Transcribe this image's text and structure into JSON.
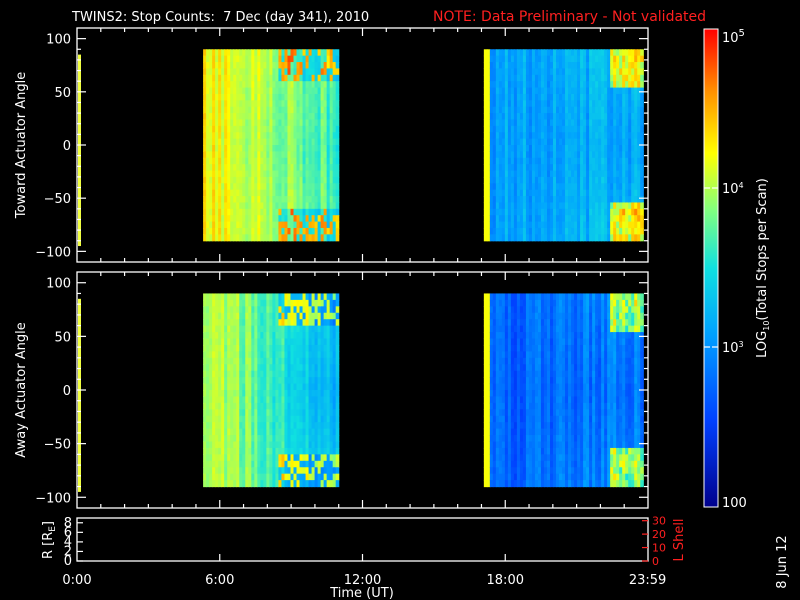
{
  "chart_data": {
    "type": "heatmap",
    "title": {
      "main": "TWINS2: Stop Counts:  7 Dec (day 341), 2010",
      "note": "NOTE: Data Preliminary - Not validated"
    },
    "xlabel": "Time (UT)",
    "x_ticks": [
      "0:00",
      "6:00",
      "12:00",
      "18:00",
      "23:59"
    ],
    "xlim": [
      0,
      24
    ],
    "panels": [
      {
        "ylabel": "Toward Actuator Angle",
        "ylim": [
          -110,
          110
        ],
        "y_ticks": [
          "100",
          "50",
          "0",
          "−50",
          "−100"
        ],
        "angle_range": [
          -90,
          90
        ],
        "data_intervals": [
          {
            "start": 5.3,
            "end": 11.0,
            "log_counts": {
              "early": 4.25,
              "late": 3.75
            }
          },
          {
            "start": 17.1,
            "end": 23.8,
            "log_counts": {
              "early": 3.1,
              "late": 3.3
            }
          }
        ]
      },
      {
        "ylabel": "Away Actuator Angle",
        "ylim": [
          -110,
          110
        ],
        "y_ticks": [
          "100",
          "50",
          "0",
          "−50",
          "−100"
        ],
        "angle_range": [
          -90,
          90
        ],
        "data_intervals": [
          {
            "start": 5.3,
            "end": 11.0,
            "log_counts": {
              "early": 4.1,
              "late": 3.3
            }
          },
          {
            "start": 17.1,
            "end": 23.8,
            "log_counts": {
              "early": 2.7,
              "late": 3.0
            }
          }
        ]
      },
      {
        "ylabel_left": "R [R",
        "ylabel_left_sub": "E",
        "ylabel_left_close": "]",
        "ylabel_right": "L Shell",
        "left_ticks": [
          "8",
          "6",
          "4",
          "2",
          "0"
        ],
        "right_ticks": [
          "30",
          "20",
          "10",
          "0"
        ],
        "ylim_left": [
          0,
          9
        ],
        "ylim_right": [
          0,
          32
        ]
      }
    ],
    "colorbar": {
      "label_pre": "LOG",
      "label_sub": "10",
      "label_post": "(Total Stops per Scan)",
      "scale": "log",
      "range": [
        100,
        100000
      ],
      "top_base": "10",
      "top_exp": "5",
      "mid_base": "10",
      "mid_exp": "4",
      "low_base": "10",
      "low_exp": "3",
      "bottom_label": "100"
    },
    "side_date": "8 Jun 12"
  }
}
